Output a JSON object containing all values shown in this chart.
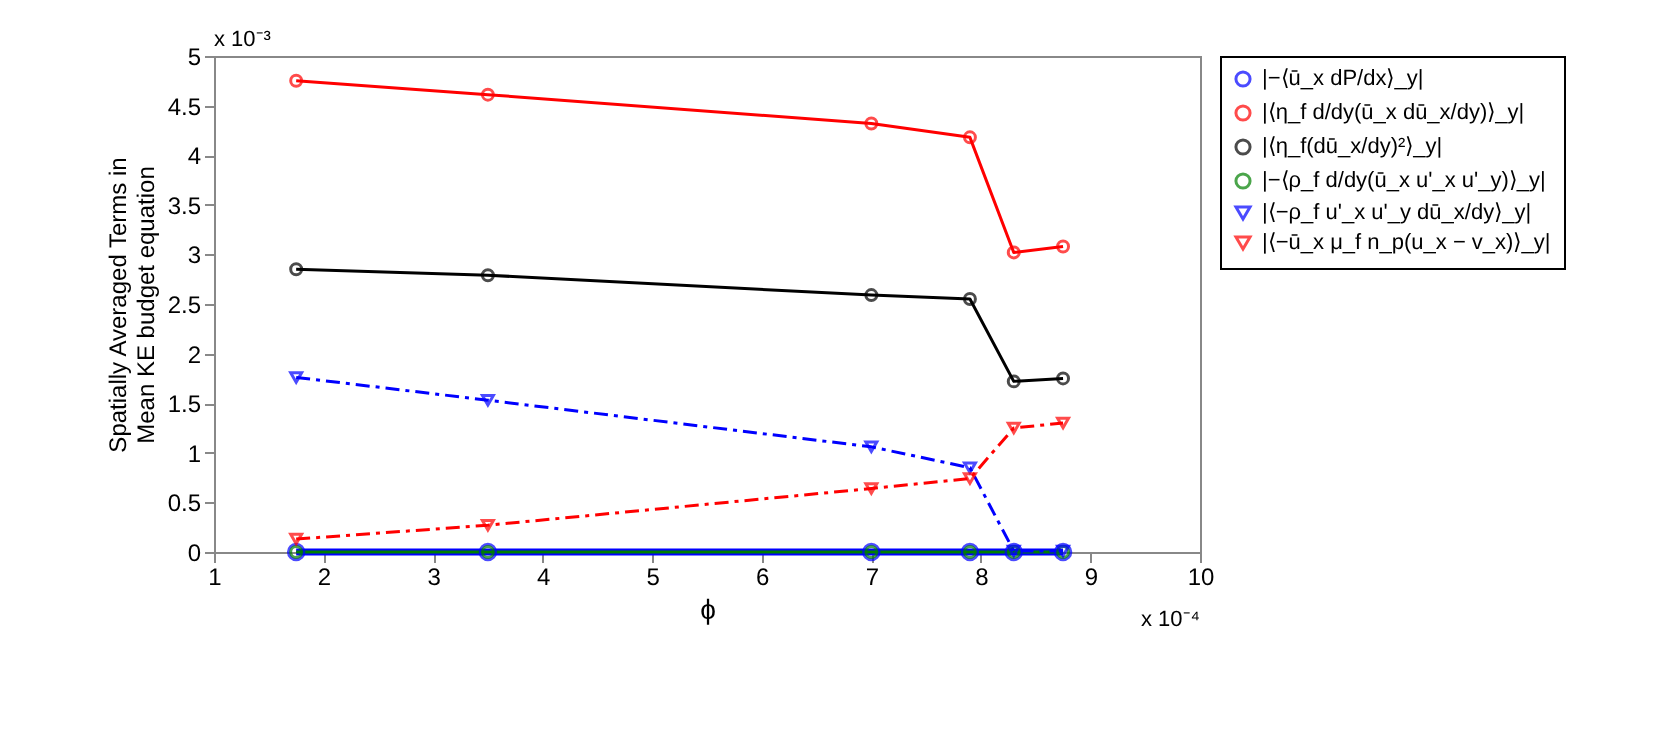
{
  "chart_data": {
    "type": "line",
    "xlabel": "ϕ",
    "ylabel": "Spatially Averaged Terms in\nMean KE budget equation",
    "x": [
      1.75,
      3.5,
      7,
      7.9,
      8.3,
      8.75
    ],
    "series": [
      {
        "name": "|−⟨ū_x dP/dx⟩_y|",
        "color": "#0000ff",
        "marker": "circle",
        "line_style": "solid",
        "values": [
          0,
          0,
          0,
          0,
          0,
          0
        ]
      },
      {
        "name": "|⟨η_f d/dy(ū_x dū_x/dy)⟩_y|",
        "color": "#ff0000",
        "marker": "circle",
        "line_style": "solid",
        "values": [
          4.75,
          4.61,
          4.32,
          4.18,
          3.02,
          3.08
        ]
      },
      {
        "name": "|⟨η_f(dū_x/dy)²⟩_y|",
        "color": "#000000",
        "marker": "circle",
        "line_style": "solid",
        "values": [
          2.85,
          2.79,
          2.59,
          2.55,
          1.72,
          1.75
        ]
      },
      {
        "name": "|−⟨ρ_f d/dy(ū_x u'_x u'_y)⟩_y|",
        "color": "#008000",
        "marker": "circle",
        "line_style": "solid",
        "values": [
          0,
          0,
          0,
          0,
          0,
          0
        ]
      },
      {
        "name": "|⟨−ρ_f u'_x u'_y dū_x/dy⟩_y|",
        "color": "#0000ff",
        "marker": "triangle",
        "line_style": "dashed",
        "values": [
          1.76,
          1.53,
          1.06,
          0.85,
          0.01,
          0.01
        ]
      },
      {
        "name": "|⟨−ū_x μ_f n_p(u_x − v_x)⟩_y|",
        "color": "#ff0000",
        "marker": "triangle",
        "line_style": "dashed",
        "values": [
          0.13,
          0.27,
          0.64,
          0.74,
          1.25,
          1.3
        ]
      }
    ],
    "xlim": [
      1,
      10
    ],
    "xticks": [
      1,
      2,
      3,
      4,
      5,
      6,
      7,
      8,
      9,
      10
    ],
    "ylim": [
      0,
      5
    ],
    "yticks": [
      0,
      0.5,
      1,
      1.5,
      2,
      2.5,
      3,
      3.5,
      4,
      4.5,
      5
    ],
    "annotations": [
      "x 10⁻³",
      "x 10⁻⁴"
    ],
    "grid": false,
    "legend": "right"
  }
}
